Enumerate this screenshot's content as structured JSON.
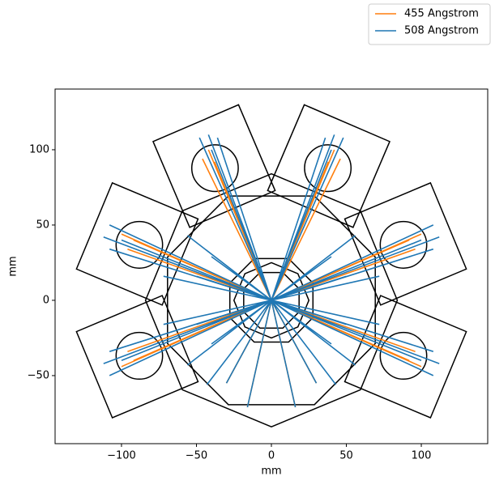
{
  "chart_data": {
    "type": "rays",
    "xlabel": "mm",
    "ylabel": "mm",
    "xlim": [
      -144.3,
      144.3
    ],
    "ylim": [
      -95.2,
      140.3
    ],
    "xticks": [
      {
        "value": -100,
        "label": "−100"
      },
      {
        "value": -50,
        "label": "−50"
      },
      0,
      50,
      100
    ],
    "yticks": [
      {
        "value": -50,
        "label": "−50"
      },
      0,
      50,
      100
    ],
    "legend": "upper right",
    "series": [
      {
        "name": "455 Angstrom",
        "color": "#ff7f0e",
        "x": [
          0,
          38,
          null,
          0,
          42,
          null,
          0,
          46,
          null,
          0,
          -38,
          null,
          0,
          -42,
          null,
          0,
          -46,
          null,
          0,
          92,
          null,
          0,
          100,
          null,
          0,
          96,
          null,
          0,
          92,
          null,
          0,
          100,
          null,
          0,
          96,
          null,
          0,
          -92,
          null,
          0,
          -100,
          null,
          0,
          -96,
          null,
          0,
          -92,
          null,
          0,
          -100,
          null,
          0,
          -96,
          null,
          0,
          -16,
          null,
          0,
          16,
          null,
          0,
          -30,
          null,
          0,
          30
        ],
        "y": [
          0,
          92,
          null,
          0,
          100,
          null,
          0,
          94,
          null,
          0,
          92,
          null,
          0,
          100,
          null,
          0,
          94,
          null,
          0,
          40,
          null,
          0,
          44,
          null,
          0,
          34,
          null,
          0,
          -40,
          null,
          0,
          -44,
          null,
          0,
          -34,
          null,
          0,
          40,
          null,
          0,
          44,
          null,
          0,
          34,
          null,
          0,
          -40,
          null,
          0,
          -44,
          null,
          0,
          -34,
          null,
          0,
          -71,
          null,
          0,
          -71,
          null,
          0,
          -55,
          null,
          0,
          -55
        ]
      },
      {
        "name": "508 Angstrom",
        "color": "#1f77b4",
        "x": [
          0,
          36,
          null,
          0,
          42,
          null,
          0,
          48,
          null,
          0,
          40,
          null,
          0,
          -36,
          null,
          0,
          -42,
          null,
          0,
          -48,
          null,
          0,
          -40,
          null,
          0,
          108,
          null,
          0,
          112,
          null,
          0,
          108,
          null,
          0,
          100,
          null,
          0,
          108,
          null,
          0,
          112,
          null,
          0,
          108,
          null,
          0,
          100,
          null,
          0,
          -108,
          null,
          0,
          -112,
          null,
          0,
          -108,
          null,
          0,
          -100,
          null,
          0,
          -108,
          null,
          0,
          -112,
          null,
          0,
          -108,
          null,
          0,
          -100,
          null,
          0,
          -56,
          null,
          0,
          -72,
          null,
          0,
          -72,
          null,
          0,
          -56,
          null,
          0,
          -43,
          null,
          0,
          -16,
          null,
          0,
          16,
          null,
          0,
          43,
          null,
          0,
          56,
          null,
          0,
          72,
          null,
          0,
          72,
          null,
          0,
          56,
          null,
          0,
          -40,
          null,
          0,
          -50,
          null,
          0,
          -50,
          null,
          0,
          -40,
          null,
          0,
          40,
          null,
          0,
          50,
          null,
          0,
          50,
          null,
          0,
          40,
          null,
          0,
          -30,
          null,
          0,
          30
        ],
        "y": [
          0,
          108,
          null,
          0,
          110,
          null,
          0,
          108,
          null,
          0,
          100,
          null,
          0,
          108,
          null,
          0,
          110,
          null,
          0,
          108,
          null,
          0,
          100,
          null,
          0,
          50,
          null,
          0,
          42,
          null,
          0,
          34,
          null,
          0,
          40,
          null,
          0,
          -50,
          null,
          0,
          -42,
          null,
          0,
          -34,
          null,
          0,
          -40,
          null,
          0,
          50,
          null,
          0,
          42,
          null,
          0,
          34,
          null,
          0,
          40,
          null,
          0,
          -50,
          null,
          0,
          -42,
          null,
          0,
          -34,
          null,
          0,
          -40,
          null,
          0,
          43,
          null,
          0,
          16,
          null,
          0,
          -16,
          null,
          0,
          -43,
          null,
          0,
          -56,
          null,
          0,
          -71,
          null,
          0,
          -71,
          null,
          0,
          -56,
          null,
          0,
          -43,
          null,
          0,
          -16,
          null,
          0,
          16,
          null,
          0,
          43,
          null,
          0,
          29,
          null,
          0,
          16,
          null,
          0,
          -16,
          null,
          0,
          -29,
          null,
          0,
          -29,
          null,
          0,
          -16,
          null,
          0,
          16,
          null,
          0,
          29,
          null,
          0,
          -55,
          null,
          0,
          -55
        ]
      }
    ]
  }
}
